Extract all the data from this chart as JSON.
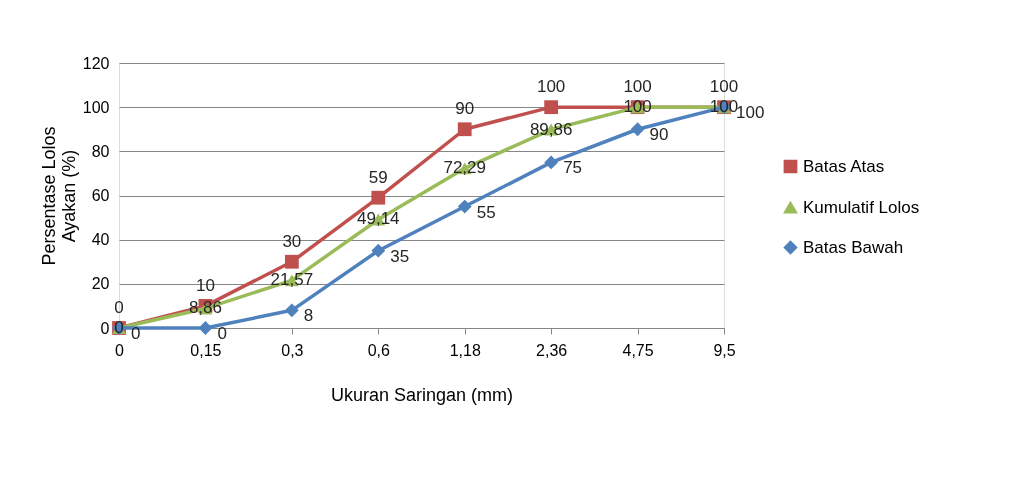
{
  "chart_data": {
    "type": "line",
    "categories": [
      "0",
      "0,15",
      "0,3",
      "0,6",
      "1,18",
      "2,36",
      "4,75",
      "9,5"
    ],
    "xlabel": "Ukuran Saringan (mm)",
    "ylabel": "Persentase Lolos Ayakan (%)",
    "ylim": [
      0,
      120
    ],
    "yticks": [
      0,
      20,
      40,
      60,
      80,
      100,
      120
    ],
    "grid": "y",
    "legend": "right",
    "series": [
      {
        "name": "Batas Atas",
        "color": "#c0504d",
        "marker": "square",
        "values": [
          0,
          10,
          30,
          59,
          90,
          100,
          100,
          100
        ],
        "value_labels": [
          "0",
          "10",
          "30",
          "59",
          "90",
          "100",
          "100",
          "100"
        ]
      },
      {
        "name": "Kumulatif Lolos",
        "color": "#9bbb59",
        "marker": "triangle",
        "values": [
          0,
          8.86,
          21.57,
          49.14,
          72.29,
          89.86,
          100,
          100
        ],
        "value_labels": [
          "0",
          "8,86",
          "21,57",
          "49,14",
          "72,29",
          "89,86",
          "100",
          "100"
        ]
      },
      {
        "name": "Batas Bawah",
        "color": "#4f81bd",
        "marker": "diamond",
        "values": [
          0,
          0,
          8,
          35,
          55,
          75,
          90,
          100
        ],
        "value_labels": [
          "0",
          "0",
          "8",
          "35",
          "55",
          "75",
          "90",
          "100"
        ]
      }
    ]
  }
}
